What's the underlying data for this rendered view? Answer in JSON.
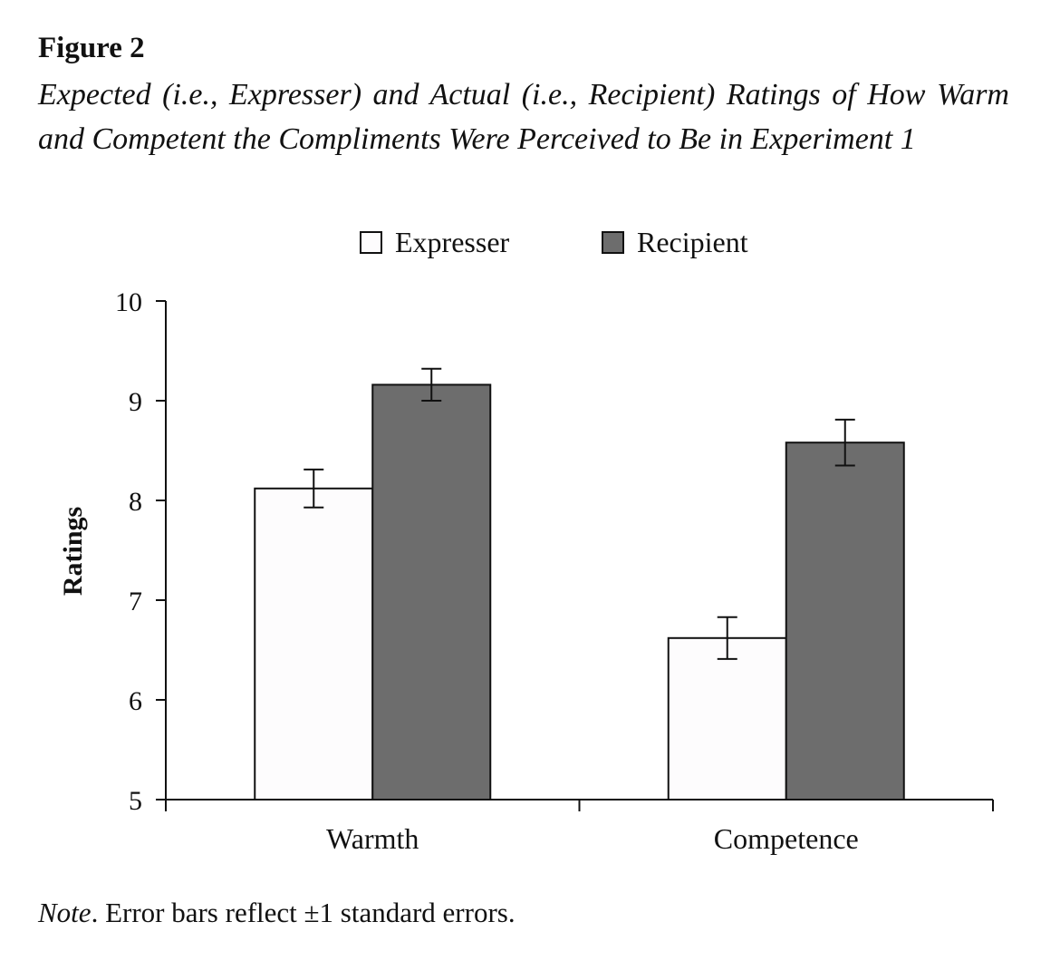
{
  "figure": {
    "label": "Figure 2",
    "title": "Expected (i.e., Expresser) and Actual (i.e., Recipient) Ratings of How Warm and Competent the Compliments Were Perceived to Be in Experiment 1"
  },
  "note": {
    "prefix": "Note",
    "text": ". Error bars reflect ±1 standard errors."
  },
  "chart_data": {
    "type": "bar",
    "title": "",
    "xlabel": "",
    "ylabel": "Ratings",
    "ylim": [
      5,
      10
    ],
    "yticks": [
      5,
      6,
      7,
      8,
      9,
      10
    ],
    "categories": [
      "Warmth",
      "Competence"
    ],
    "legend_position": "top",
    "series": [
      {
        "name": "Expresser",
        "color": "#fdfcfd",
        "values": [
          8.12,
          6.62
        ],
        "errors": [
          0.19,
          0.21
        ]
      },
      {
        "name": "Recipient",
        "color": "#6d6d6d",
        "values": [
          9.16,
          8.58
        ],
        "errors": [
          0.16,
          0.23
        ]
      }
    ]
  }
}
